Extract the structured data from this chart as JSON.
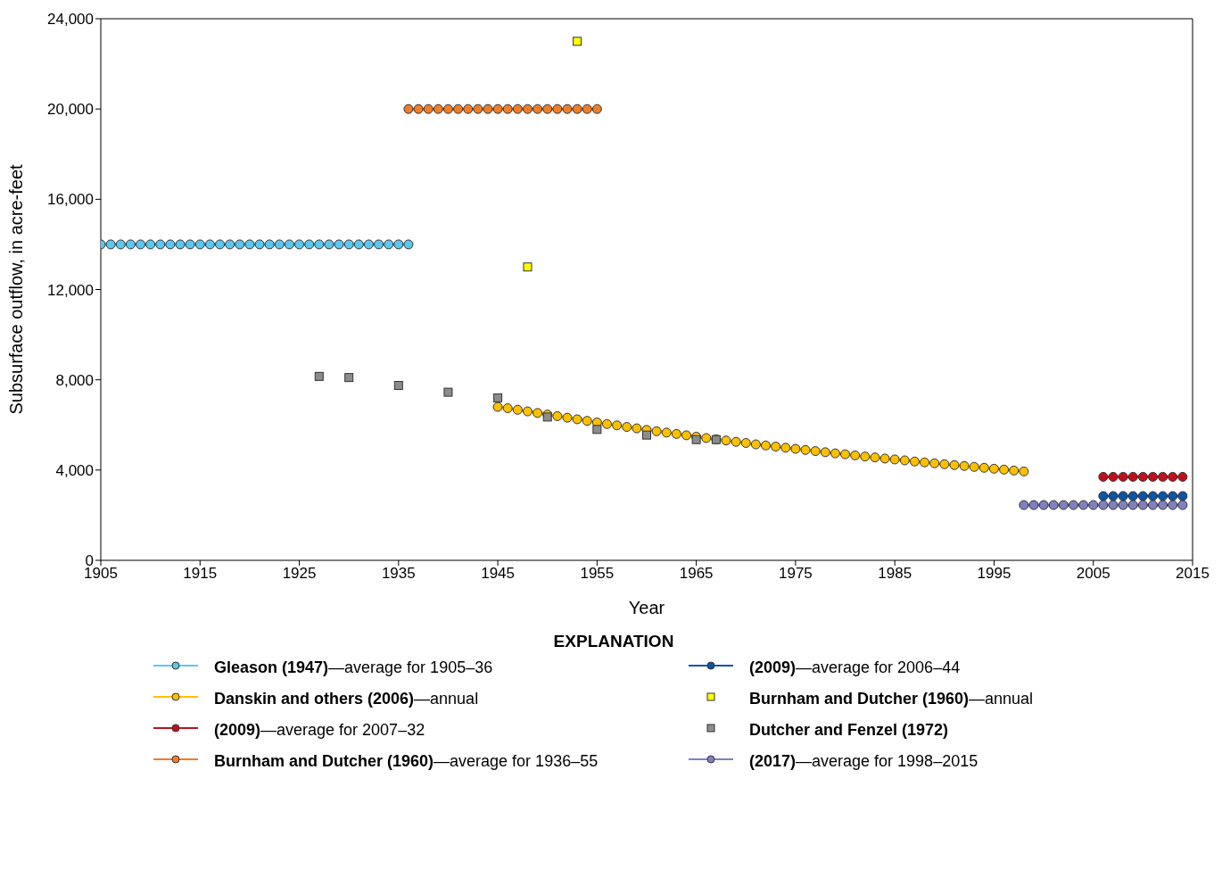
{
  "chart_data": {
    "type": "line",
    "xlabel": "Year",
    "ylabel": "Subsurface outflow, in acre-feet",
    "legend_title": "EXPLANATION",
    "legend": "bottom",
    "grid": false,
    "xlim": [
      1905,
      2015
    ],
    "xticks": [
      1905,
      1915,
      1925,
      1935,
      1945,
      1955,
      1965,
      1975,
      1985,
      1995,
      2005,
      2015
    ],
    "ylim": [
      0,
      24000
    ],
    "yticks": [
      0,
      {
        "value": 4000,
        "label": "4,000"
      },
      {
        "value": 8000,
        "label": "8,000"
      },
      {
        "value": 12000,
        "label": "12,000"
      },
      {
        "value": 16000,
        "label": "16,000"
      },
      {
        "value": 20000,
        "label": "20,000"
      },
      {
        "value": 24000,
        "label": "24,000"
      }
    ],
    "series": [
      {
        "name": "Gleason (1947)—average for 1905–36",
        "marker": "circle",
        "color": "#5bc8ef",
        "x": [
          1905,
          1906,
          1907,
          1908,
          1909,
          1910,
          1911,
          1912,
          1913,
          1914,
          1915,
          1916,
          1917,
          1918,
          1919,
          1920,
          1921,
          1922,
          1923,
          1924,
          1925,
          1926,
          1927,
          1928,
          1929,
          1930,
          1931,
          1932,
          1933,
          1934,
          1935,
          1936
        ],
        "values": [
          14000,
          14000,
          14000,
          14000,
          14000,
          14000,
          14000,
          14000,
          14000,
          14000,
          14000,
          14000,
          14000,
          14000,
          14000,
          14000,
          14000,
          14000,
          14000,
          14000,
          14000,
          14000,
          14000,
          14000,
          14000,
          14000,
          14000,
          14000,
          14000,
          14000,
          14000,
          14000
        ]
      },
      {
        "name": "Danskin and others (2006)—annual",
        "marker": "circle",
        "color": "#ffc000",
        "x": [
          1945,
          1946,
          1947,
          1948,
          1949,
          1950,
          1951,
          1952,
          1953,
          1954,
          1955,
          1956,
          1957,
          1958,
          1959,
          1960,
          1961,
          1962,
          1963,
          1964,
          1965,
          1966,
          1967,
          1968,
          1969,
          1970,
          1971,
          1972,
          1973,
          1974,
          1975,
          1976,
          1977,
          1978,
          1979,
          1980,
          1981,
          1982,
          1983,
          1984,
          1985,
          1986,
          1987,
          1988,
          1989,
          1990,
          1991,
          1992,
          1993,
          1994,
          1995,
          1996,
          1997,
          1998
        ],
        "values": [
          6800,
          6740,
          6670,
          6600,
          6530,
          6460,
          6390,
          6320,
          6250,
          6180,
          6110,
          6040,
          5980,
          5910,
          5850,
          5780,
          5720,
          5660,
          5600,
          5540,
          5480,
          5420,
          5360,
          5310,
          5250,
          5200,
          5140,
          5090,
          5040,
          4990,
          4940,
          4890,
          4840,
          4790,
          4740,
          4700,
          4650,
          4600,
          4560,
          4510,
          4470,
          4430,
          4380,
          4340,
          4300,
          4260,
          4220,
          4180,
          4140,
          4100,
          4060,
          4020,
          3980,
          3940
        ]
      },
      {
        "name": "(2009)—average for 2007–32",
        "marker": "circle",
        "color": "#c0101c",
        "x": [
          2006,
          2007,
          2008,
          2009,
          2010,
          2011,
          2012,
          2013,
          2014
        ],
        "values": [
          3700,
          3700,
          3700,
          3700,
          3700,
          3700,
          3700,
          3700,
          3700
        ]
      },
      {
        "name": "Burnham and Dutcher (1960)—average for 1936–55",
        "marker": "circle",
        "color": "#f07d28",
        "x": [
          1936,
          1937,
          1938,
          1939,
          1940,
          1941,
          1942,
          1943,
          1944,
          1945,
          1946,
          1947,
          1948,
          1949,
          1950,
          1951,
          1952,
          1953,
          1954,
          1955
        ],
        "values": [
          20000,
          20000,
          20000,
          20000,
          20000,
          20000,
          20000,
          20000,
          20000,
          20000,
          20000,
          20000,
          20000,
          20000,
          20000,
          20000,
          20000,
          20000,
          20000,
          20000
        ]
      },
      {
        "name": "(2009)—average for 2006–44",
        "marker": "circle",
        "color": "#0a55a5",
        "x": [
          2006,
          2007,
          2008,
          2009,
          2010,
          2011,
          2012,
          2013,
          2014
        ],
        "values": [
          2850,
          2850,
          2850,
          2850,
          2850,
          2850,
          2850,
          2850,
          2850
        ]
      },
      {
        "name": "Burnham and Dutcher (1960)—annual",
        "type": "scatter",
        "marker": "square",
        "color": "#ffff00",
        "x": [
          1948,
          1953
        ],
        "values": [
          13000,
          23000
        ]
      },
      {
        "name": "Dutcher and Fenzel (1972)",
        "type": "scatter",
        "marker": "square",
        "color": "#8c8c8c",
        "x": [
          1927,
          1930,
          1935,
          1940,
          1945,
          1950,
          1955,
          1960,
          1965,
          1967
        ],
        "values": [
          8150,
          8100,
          7750,
          7450,
          7200,
          6350,
          5800,
          5550,
          5350,
          5350
        ]
      },
      {
        "name": "(2017)—average for 1998–2015",
        "marker": "circle",
        "color": "#8080c0",
        "x": [
          1998,
          1999,
          2000,
          2001,
          2002,
          2003,
          2004,
          2005,
          2006,
          2007,
          2008,
          2009,
          2010,
          2011,
          2012,
          2013,
          2014
        ],
        "values": [
          2450,
          2450,
          2450,
          2450,
          2450,
          2450,
          2450,
          2450,
          2450,
          2450,
          2450,
          2450,
          2450,
          2450,
          2450,
          2450,
          2450
        ]
      }
    ]
  }
}
